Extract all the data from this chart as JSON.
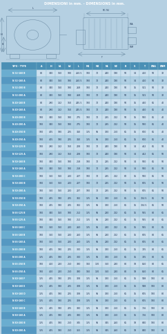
{
  "title": "DIMENSIONI in mm. - DIMENSIONS in mm.",
  "headers": [
    "TIPO - TYPE",
    "A",
    "H",
    "h1",
    "h2",
    "L",
    "M1",
    "M2",
    "N1",
    "N2",
    "B",
    "S",
    "T",
    "DNA",
    "DNM"
  ],
  "rows": [
    [
      "N 32-160 B",
      "80",
      "340",
      "160",
      "180",
      "260.5",
      "100",
      "70",
      "240",
      "190",
      "50",
      "14",
      "450",
      "50",
      "32"
    ],
    [
      "N 32-160 A",
      "80",
      "340",
      "160",
      "180",
      "260.5",
      "100",
      "70",
      "240",
      "190",
      "50",
      "14",
      "450",
      "50",
      "32"
    ],
    [
      "N 32-200 B",
      "80",
      "340",
      "160",
      "180",
      "268",
      "100",
      "70",
      "240",
      "190",
      "50",
      "15",
      "541",
      "50",
      "32"
    ],
    [
      "N 32-200 A",
      "80",
      "340",
      "160",
      "180",
      "268",
      "100",
      "70",
      "240",
      "190",
      "50",
      "15",
      "541",
      "50",
      "32"
    ],
    [
      "N 40-160 B",
      "80",
      "290",
      "132",
      "160",
      "245.5",
      "100",
      "70",
      "240",
      "190",
      "50",
      "15",
      "460",
      "65",
      "40"
    ],
    [
      "N 40-160 A",
      "80",
      "290",
      "132",
      "160",
      "245.5",
      "100",
      "70",
      "240",
      "190",
      "50",
      "15",
      "460",
      "65",
      "40"
    ],
    [
      "N 40-200 B",
      "100",
      "340",
      "160",
      "180",
      "275",
      "100",
      "70",
      "285",
      "212",
      "50",
      "15",
      "500",
      "65",
      "40"
    ],
    [
      "N 40-200 A",
      "100",
      "340",
      "160",
      "180",
      "275",
      "100",
      "70",
      "285",
      "212",
      "50",
      "15",
      "500",
      "65",
      "40"
    ],
    [
      "N 40-250 B",
      "100",
      "405",
      "180",
      "225",
      "310",
      "125",
      "95",
      "320",
      "250",
      "65",
      "15",
      "600",
      "65",
      "40"
    ],
    [
      "N 40-250 A",
      "100",
      "405",
      "180",
      "225",
      "310",
      "125",
      "95",
      "320",
      "250",
      "65",
      "15",
      "600",
      "65",
      "40"
    ],
    [
      "N 50-125 B",
      "100",
      "290",
      "132",
      "160",
      "228",
      "100",
      "70",
      "240",
      "190",
      "50",
      "14",
      "462",
      "65",
      "50"
    ],
    [
      "N 50-125 A",
      "100",
      "290",
      "132",
      "160",
      "228",
      "100",
      "70",
      "240",
      "190",
      "50",
      "14",
      "462",
      "65",
      "50"
    ],
    [
      "N 50-160 B",
      "100",
      "340",
      "160",
      "180",
      "258",
      "100",
      "70",
      "285",
      "212",
      "50",
      "14",
      "500",
      "65",
      "50"
    ],
    [
      "N 50-160 A",
      "100",
      "340",
      "160",
      "180",
      "258",
      "100",
      "70",
      "285",
      "212",
      "50",
      "14",
      "500",
      "65",
      "50"
    ],
    [
      "N 50-200 C",
      "100",
      "360",
      "160",
      "200",
      "287",
      "100",
      "70",
      "285",
      "212",
      "60",
      "15",
      "500",
      "65",
      "50"
    ],
    [
      "N 50-200 B",
      "100",
      "360",
      "160",
      "200",
      "287",
      "100",
      "70",
      "285",
      "212",
      "50",
      "15",
      "605",
      "65",
      "50"
    ],
    [
      "N 50-200 A",
      "100",
      "360",
      "160",
      "200",
      "287",
      "100",
      "70",
      "285",
      "212",
      "50",
      "15",
      "605",
      "65",
      "50"
    ],
    [
      "N 50-250 B",
      "100",
      "405",
      "180",
      "225",
      "332",
      "125",
      "95",
      "320",
      "250",
      "65",
      "15",
      "724.5",
      "65",
      "50"
    ],
    [
      "N 50-250 A",
      "100",
      "405",
      "180",
      "225",
      "332",
      "125",
      "95",
      "320",
      "250",
      "65",
      "15",
      "724.5",
      "65",
      "50"
    ],
    [
      "N 65-125 B",
      "100",
      "340",
      "150",
      "180",
      "252",
      "125",
      "95",
      "280",
      "212",
      "65",
      "15",
      "565",
      "80",
      "65"
    ],
    [
      "N 65-125 A",
      "100",
      "340",
      "150",
      "180",
      "252",
      "125",
      "95",
      "280",
      "212",
      "65",
      "15",
      "565",
      "80",
      "65"
    ],
    [
      "N 65-160 C",
      "100",
      "360",
      "160",
      "200",
      "260",
      "125",
      "95",
      "280",
      "212",
      "65",
      "15",
      "565",
      "80",
      "65"
    ],
    [
      "N 65-160 B",
      "100",
      "360",
      "160",
      "200",
      "260",
      "125",
      "95",
      "280",
      "212",
      "65",
      "15",
      "605",
      "80",
      "65"
    ],
    [
      "N 65-160 A",
      "100",
      "360",
      "160",
      "200",
      "260",
      "125",
      "95",
      "280",
      "212",
      "65",
      "15",
      "605",
      "80",
      "65"
    ],
    [
      "N 65-200 B",
      "100",
      "405",
      "180",
      "225",
      "300",
      "125",
      "95",
      "320",
      "250",
      "65",
      "15",
      "725",
      "80",
      "65"
    ],
    [
      "N 65-200 A",
      "125",
      "405",
      "180",
      "225",
      "300",
      "125",
      "95",
      "320",
      "250",
      "65",
      "15",
      "725",
      "80",
      "65"
    ],
    [
      "N 65-250 B",
      "100",
      "450",
      "200",
      "250",
      "330",
      "160",
      "120",
      "360",
      "280",
      "80",
      "18",
      "850",
      "80",
      "65"
    ],
    [
      "N 65-250 A",
      "100",
      "450",
      "200",
      "250",
      "330",
      "160",
      "120",
      "360",
      "280",
      "80",
      "18",
      "850",
      "80",
      "65"
    ],
    [
      "N 80-160 F",
      "125",
      "405",
      "180",
      "225",
      "328",
      "125",
      "95",
      "320",
      "250",
      "65",
      "15",
      "598",
      "100",
      "80"
    ],
    [
      "N 80-160 E",
      "125",
      "405",
      "180",
      "225",
      "328",
      "125",
      "95",
      "320",
      "250",
      "65",
      "15",
      "598",
      "100",
      "80"
    ],
    [
      "N 80-160 D",
      "125",
      "405",
      "180",
      "225",
      "328",
      "125",
      "95",
      "320",
      "250",
      "65",
      "15",
      "605",
      "100",
      "80"
    ],
    [
      "N 80-160 C",
      "125",
      "405",
      "180",
      "225",
      "328",
      "125",
      "95",
      "320",
      "250",
      "65",
      "15",
      "605",
      "100",
      "80"
    ],
    [
      "N 80-160 B",
      "125",
      "405",
      "180",
      "225",
      "330",
      "125",
      "95",
      "320",
      "250",
      "65",
      "15",
      "756",
      "100",
      "80"
    ],
    [
      "N 80-160 A",
      "125",
      "405",
      "180",
      "225",
      "330",
      "125",
      "95",
      "320",
      "250",
      "65",
      "15",
      "756",
      "100",
      "80"
    ],
    [
      "N 80-200 B",
      "125",
      "405",
      "180",
      "250",
      "345",
      "125",
      "95",
      "345",
      "260",
      "65",
      "18",
      "840",
      "100",
      "80"
    ],
    [
      "N 80-200 A",
      "125",
      "405",
      "180",
      "250",
      "355",
      "125",
      "95",
      "345",
      "260",
      "65",
      "18",
      "840",
      "100",
      "80"
    ]
  ],
  "header_bg": "#4a8fb5",
  "header_text": "#ffffff",
  "row_bg_even": "#cce0ef",
  "row_bg_odd": "#b0cfe3",
  "type_bg_even": "#6aadd0",
  "type_bg_odd": "#5598c2",
  "diagram_bg": "#b5d0e2",
  "title_bg": "#4a9ac8",
  "title_text": "#ffffff",
  "border_color": "#88b8cc",
  "cell_text": "#1a3050",
  "type_text": "#ffffff",
  "lc": "#7090a8"
}
